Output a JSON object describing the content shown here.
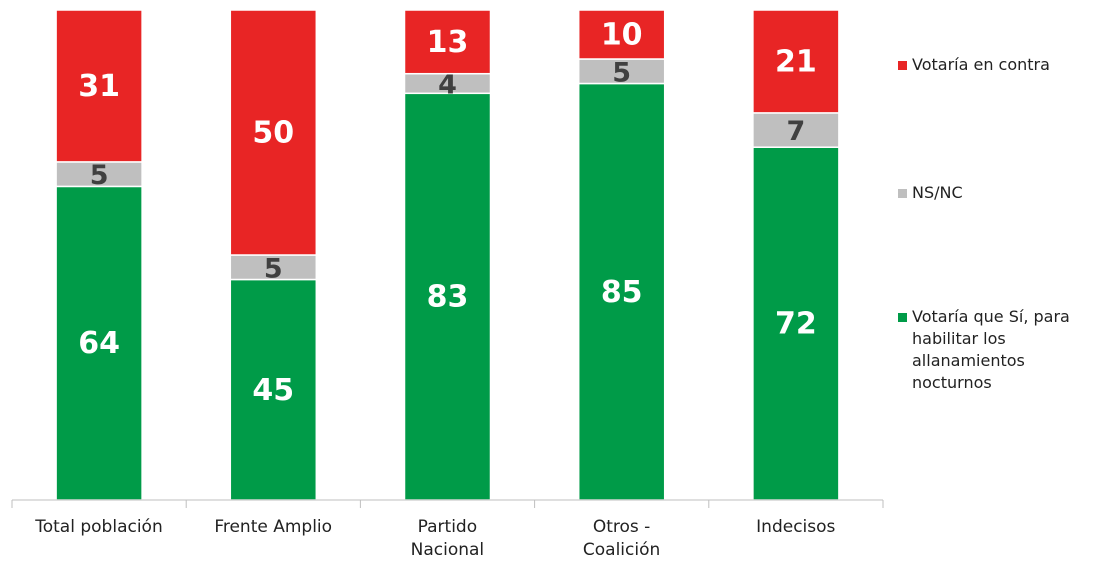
{
  "chart_data": {
    "type": "stacked_bar",
    "categories": [
      "Total población",
      "Frente Amplio",
      "Partido\nNacional",
      "Otros -\nCoalición",
      "Indecisos"
    ],
    "series": [
      {
        "name": "Votaría que Sí, para habilitar los allanamientos nocturnos",
        "color": "#009b48",
        "values": [
          64,
          45,
          83,
          85,
          72
        ]
      },
      {
        "name": "NS/NC",
        "color": "#bfbfbf",
        "values": [
          5,
          5,
          4,
          5,
          7
        ]
      },
      {
        "name": "Votaría en contra",
        "color": "#e82525",
        "values": [
          31,
          50,
          13,
          10,
          21
        ]
      }
    ],
    "ylim": [
      0,
      100
    ]
  }
}
